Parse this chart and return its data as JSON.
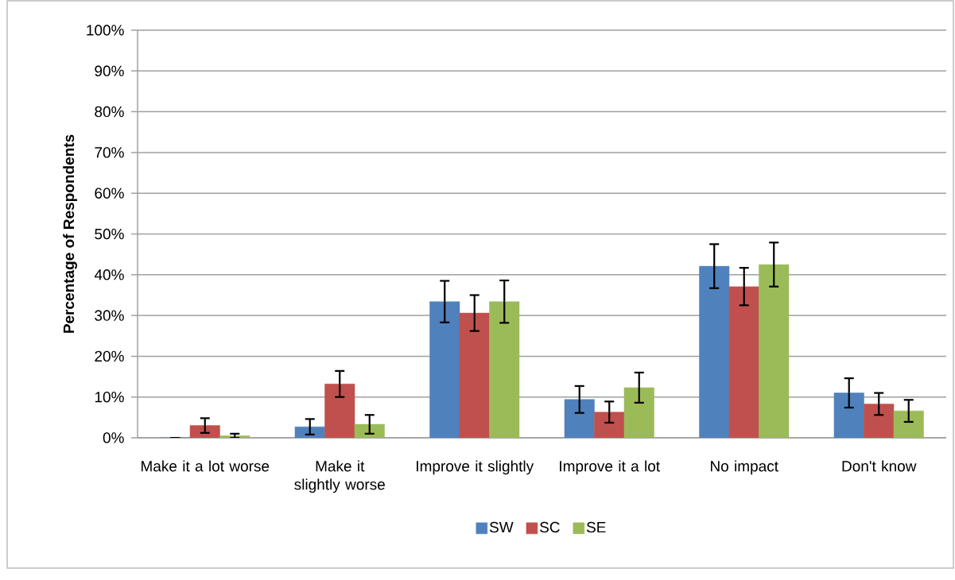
{
  "chart_data": {
    "type": "bar",
    "ylabel": "Percentage of Respondents",
    "categories": [
      "Make it a lot worse",
      "Make it slightly worse",
      "Improve it slightly",
      "Improve it a lot",
      "No impact",
      "Don't know"
    ],
    "series": [
      {
        "name": "SW",
        "color": "#4f81bd",
        "values": [
          0,
          2.7,
          33.4,
          9.4,
          42.1,
          11.0
        ],
        "errors": [
          0,
          1.9,
          5.1,
          3.3,
          5.4,
          3.6
        ]
      },
      {
        "name": "SC",
        "color": "#c0504d",
        "values": [
          3.0,
          13.2,
          30.6,
          6.3,
          37.1,
          8.3
        ],
        "errors": [
          1.8,
          3.2,
          4.4,
          2.6,
          4.6,
          2.7
        ]
      },
      {
        "name": "SE",
        "color": "#9bbb59",
        "values": [
          0.5,
          3.3,
          33.4,
          12.3,
          42.5,
          6.6
        ],
        "errors": [
          0.5,
          2.3,
          5.2,
          3.7,
          5.4,
          2.7
        ]
      }
    ],
    "ylim": [
      0,
      100
    ],
    "yticks": [
      {
        "value": 0,
        "label": "0%"
      },
      {
        "value": 10,
        "label": "10%"
      },
      {
        "value": 20,
        "label": "20%"
      },
      {
        "value": 30,
        "label": "30%"
      },
      {
        "value": 40,
        "label": "40%"
      },
      {
        "value": 50,
        "label": "50%"
      },
      {
        "value": 60,
        "label": "60%"
      },
      {
        "value": 70,
        "label": "70%"
      },
      {
        "value": 80,
        "label": "80%"
      },
      {
        "value": 90,
        "label": "90%"
      },
      {
        "value": 100,
        "label": "100%"
      }
    ],
    "grid": "y",
    "legend": "bottom"
  }
}
